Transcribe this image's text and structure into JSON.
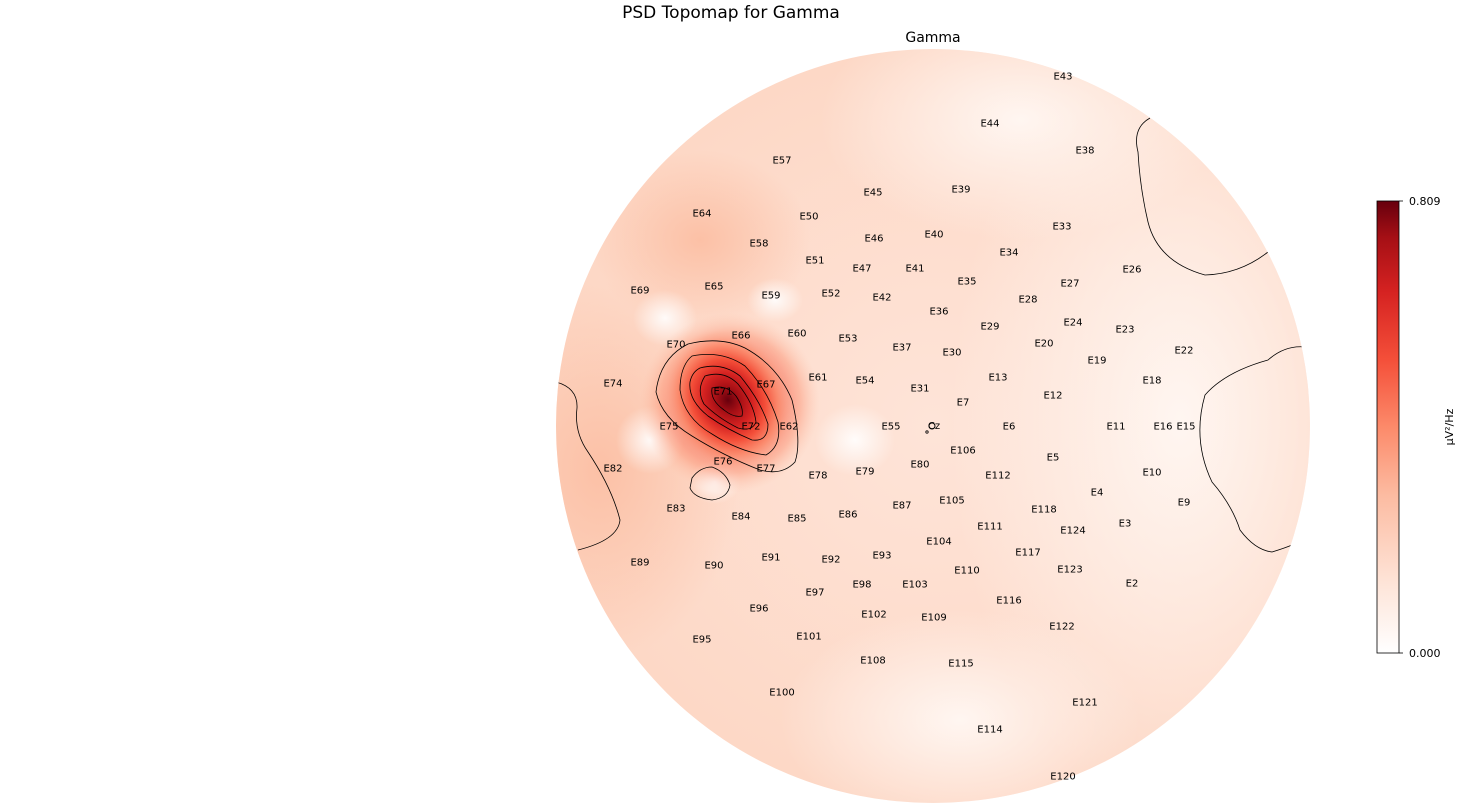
{
  "figure": {
    "suptitle": "PSD Topomap for Gamma",
    "subplot_title": "Gamma"
  },
  "colorbar": {
    "max_label": "0.809",
    "min_label": "0.000",
    "unit_label": "µV²/Hz",
    "colormap": "Reds",
    "color_low": "#ffffff",
    "color_mid": "#fc8a6a",
    "color_high": "#67000d"
  },
  "chart_data": {
    "type": "heatmap",
    "subtype": "eeg_topomap",
    "title": "PSD Topomap for Gamma",
    "subplot_title": "Gamma",
    "colorbar": {
      "min": 0.0,
      "max": 0.809,
      "unit": "µV²/Hz",
      "colormap": "Reds"
    },
    "reference_label": "Cz",
    "peak_channel": "E71",
    "peak_value": 0.809,
    "channels": [
      "E43",
      "E44",
      "E38",
      "E57",
      "E39",
      "E45",
      "E64",
      "E50",
      "E33",
      "E40",
      "E46",
      "E58",
      "E34",
      "E51",
      "E47",
      "E41",
      "E26",
      "E35",
      "E27",
      "E69",
      "E65",
      "E59",
      "E52",
      "E42",
      "E28",
      "E36",
      "E24",
      "E23",
      "E29",
      "E70",
      "E66",
      "E60",
      "E53",
      "E20",
      "E22",
      "E37",
      "E30",
      "E19",
      "E74",
      "E71",
      "E67",
      "E61",
      "E54",
      "E13",
      "E18",
      "E31",
      "E12",
      "E7",
      "E75",
      "E72",
      "E62",
      "E55",
      "E6",
      "E11",
      "E16",
      "E15",
      "E106",
      "E76",
      "E77",
      "E5",
      "E82",
      "E78",
      "E79",
      "E80",
      "E112",
      "E10",
      "E4",
      "E105",
      "E9",
      "E83",
      "E87",
      "E118",
      "E84",
      "E85",
      "E86",
      "E111",
      "E124",
      "E3",
      "E104",
      "E117",
      "E91",
      "E92",
      "E93",
      "E89",
      "E90",
      "E123",
      "E110",
      "E2",
      "E98",
      "E103",
      "E97",
      "E116",
      "E96",
      "E102",
      "E109",
      "E122",
      "E95",
      "E101",
      "E108",
      "E115",
      "E100",
      "E121",
      "E114",
      "E120"
    ]
  }
}
